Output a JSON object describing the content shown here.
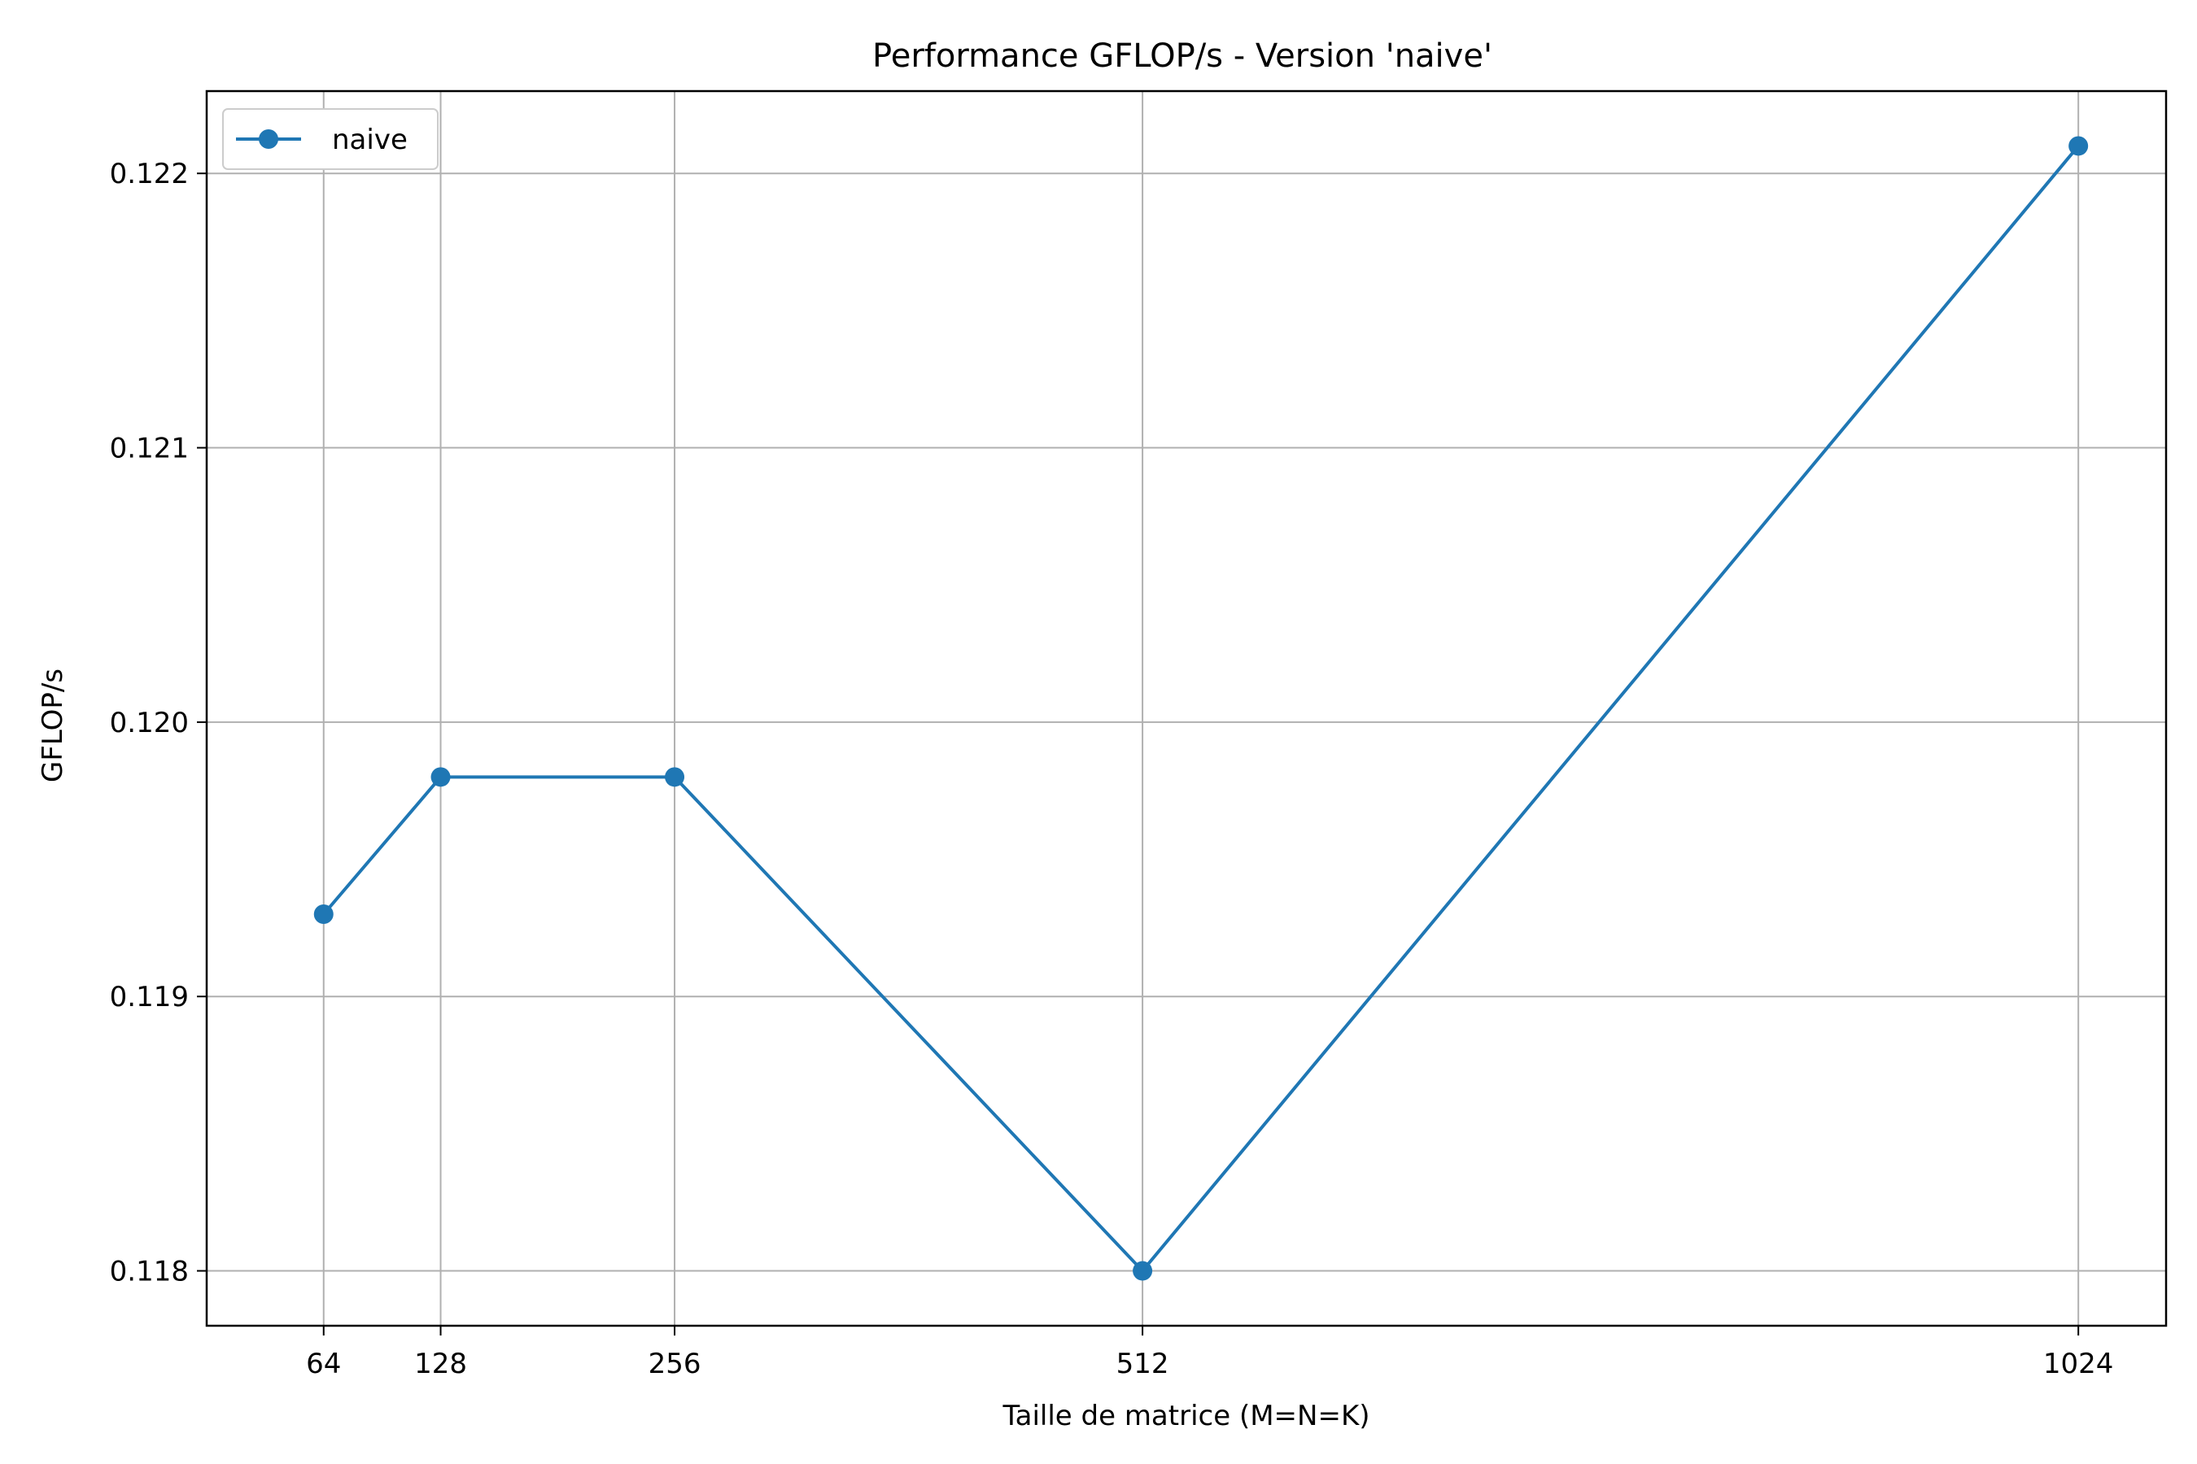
{
  "chart_data": {
    "type": "line",
    "title": "Performance GFLOP/s - Version 'naive'",
    "xlabel": "Taille de matrice (M=N=K)",
    "ylabel": "GFLOP/s",
    "x": [
      64,
      128,
      256,
      512,
      1024
    ],
    "x_tick_labels": [
      "64",
      "128",
      "256",
      "512",
      "1024"
    ],
    "series": [
      {
        "name": "naive",
        "color": "#1f77b4",
        "marker": "circle",
        "values": [
          0.1193,
          0.1198,
          0.1198,
          0.118,
          0.1221
        ]
      }
    ],
    "y_ticks": [
      0.118,
      0.119,
      0.12,
      0.121,
      0.122
    ],
    "y_tick_labels": [
      "0.118",
      "0.119",
      "0.120",
      "0.121",
      "0.122"
    ],
    "xlim": [
      0,
      1072
    ],
    "ylim": [
      0.1178,
      0.1223
    ],
    "grid": true,
    "legend_position": "upper-left",
    "colors": {
      "grid": "#b0b0b0",
      "axes": "#000000",
      "background": "#ffffff"
    }
  }
}
